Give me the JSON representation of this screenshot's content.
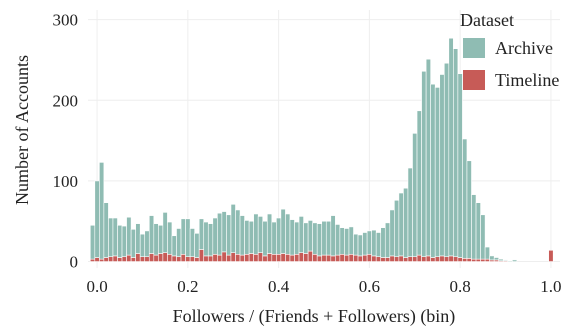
{
  "chart_data": {
    "type": "bar",
    "title": "",
    "xlabel": "Followers / (Friends + Followers) (bin)",
    "ylabel": "Number of Accounts",
    "xlim": [
      -0.02,
      1.02
    ],
    "ylim": [
      -8,
      312
    ],
    "xticks": [
      "0.0",
      "0.2",
      "0.4",
      "0.6",
      "0.8",
      "1.0"
    ],
    "yticks": [
      "0",
      "100",
      "200",
      "300"
    ],
    "bin_width": 0.01,
    "stacked": true,
    "grid": true,
    "legend": {
      "title": "Dataset",
      "position": "top-right"
    },
    "x": [
      -0.01,
      0,
      0.01,
      0.02,
      0.03,
      0.04,
      0.05,
      0.06,
      0.07,
      0.08,
      0.09,
      0.1,
      0.11,
      0.12,
      0.13,
      0.14,
      0.15,
      0.16,
      0.17,
      0.18,
      0.19,
      0.2,
      0.21,
      0.22,
      0.23,
      0.24,
      0.25,
      0.26,
      0.27,
      0.28,
      0.29,
      0.3,
      0.31,
      0.32,
      0.33,
      0.34,
      0.35,
      0.36,
      0.37,
      0.38,
      0.39,
      0.4,
      0.41,
      0.42,
      0.43,
      0.44,
      0.45,
      0.46,
      0.47,
      0.48,
      0.49,
      0.5,
      0.51,
      0.52,
      0.53,
      0.54,
      0.55,
      0.56,
      0.57,
      0.58,
      0.59,
      0.6,
      0.61,
      0.62,
      0.63,
      0.64,
      0.65,
      0.66,
      0.67,
      0.68,
      0.69,
      0.7,
      0.71,
      0.72,
      0.73,
      0.74,
      0.75,
      0.76,
      0.77,
      0.78,
      0.79,
      0.8,
      0.81,
      0.82,
      0.83,
      0.84,
      0.85,
      0.86,
      0.87,
      0.88,
      0.89,
      0.9,
      0.91,
      0.92,
      0.93,
      0.94,
      0.95,
      0.96,
      0.97,
      0.98,
      0.99,
      1.0
    ],
    "series": [
      {
        "name": "Timeline",
        "color": "#c75b57",
        "values": [
          3,
          5,
          3,
          5,
          6,
          7,
          5,
          6,
          8,
          5,
          10,
          6,
          6,
          10,
          8,
          10,
          11,
          9,
          7,
          6,
          9,
          6,
          6,
          5,
          15,
          7,
          7,
          9,
          8,
          12,
          8,
          11,
          9,
          8,
          9,
          10,
          9,
          11,
          7,
          10,
          9,
          9,
          10,
          9,
          8,
          9,
          11,
          10,
          13,
          9,
          7,
          8,
          8,
          7,
          8,
          9,
          8,
          9,
          8,
          7,
          8,
          9,
          7,
          6,
          5,
          5,
          7,
          6,
          7,
          5,
          6,
          6,
          8,
          6,
          7,
          5,
          6,
          7,
          6,
          7,
          6,
          5,
          4,
          4,
          3,
          3,
          3,
          3,
          2,
          2,
          1,
          1,
          0,
          0,
          0,
          0,
          0,
          0,
          0,
          0,
          0,
          14
        ]
      },
      {
        "name": "Archive",
        "color": "#8fbcb3",
        "values": [
          42,
          95,
          120,
          68,
          48,
          47,
          40,
          38,
          47,
          35,
          37,
          28,
          32,
          47,
          39,
          35,
          50,
          40,
          25,
          35,
          44,
          47,
          35,
          30,
          38,
          42,
          40,
          45,
          52,
          50,
          50,
          60,
          55,
          49,
          42,
          40,
          50,
          45,
          43,
          49,
          40,
          45,
          55,
          50,
          44,
          40,
          45,
          38,
          38,
          39,
          40,
          42,
          42,
          50,
          38,
          33,
          33,
          34,
          26,
          26,
          28,
          29,
          32,
          30,
          37,
          43,
          57,
          70,
          78,
          86,
          110,
          153,
          179,
          230,
          244,
          215,
          210,
          225,
          240,
          270,
          258,
          228,
          148,
          121,
          80,
          70,
          55,
          15,
          5,
          3,
          2,
          1,
          1,
          2,
          0,
          0,
          0,
          0,
          0,
          0,
          0,
          0
        ]
      }
    ],
    "legend_order": [
      "Archive",
      "Timeline"
    ]
  }
}
